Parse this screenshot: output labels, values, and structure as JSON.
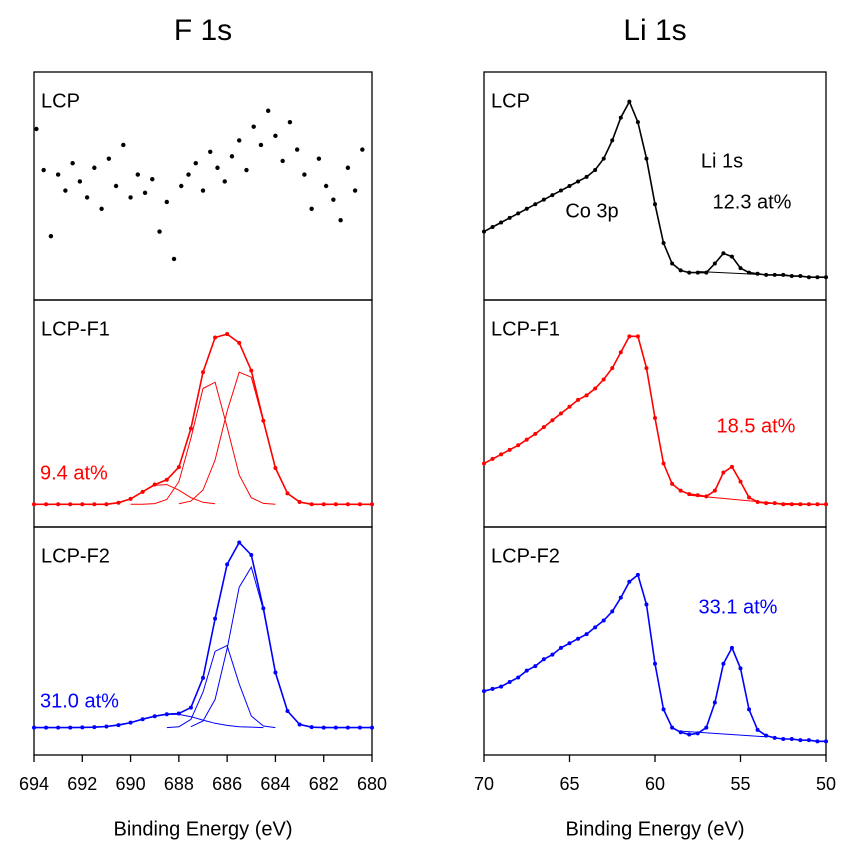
{
  "chart_data": [
    {
      "type": "scatter",
      "title": "F 1s",
      "label": "LCP",
      "xlim": [
        694,
        680
      ],
      "ylim": [
        0,
        100
      ],
      "annotations": [],
      "series": [
        {
          "color": "#000000",
          "style": "dots",
          "x": [
            693.9,
            693.6,
            693.3,
            693.0,
            692.7,
            692.4,
            692.1,
            691.8,
            691.5,
            691.2,
            690.9,
            690.6,
            690.3,
            690.0,
            689.7,
            689.4,
            689.1,
            688.8,
            688.5,
            688.2,
            687.9,
            687.6,
            687.3,
            687.0,
            686.7,
            686.4,
            686.1,
            685.8,
            685.5,
            685.2,
            684.9,
            684.6,
            684.3,
            684.0,
            683.7,
            683.4,
            683.1,
            682.8,
            682.5,
            682.2,
            681.9,
            681.6,
            681.3,
            681.0,
            680.7,
            680.4
          ],
          "values": [
            75,
            57,
            28,
            55,
            48,
            60,
            52,
            45,
            58,
            40,
            62,
            50,
            68,
            45,
            55,
            47,
            53,
            30,
            43,
            18,
            50,
            55,
            60,
            48,
            65,
            58,
            52,
            63,
            70,
            57,
            76,
            68,
            83,
            72,
            61,
            78,
            66,
            55,
            40,
            62,
            50,
            44,
            35,
            58,
            48,
            66
          ]
        }
      ]
    },
    {
      "type": "line",
      "label": "LCP-F1",
      "xlim": [
        694,
        680
      ],
      "ylim": [
        0,
        100
      ],
      "annotations": [
        {
          "text": "9.4 at%",
          "color": "#ff0000"
        }
      ],
      "series": [
        {
          "color": "#ff0000",
          "style": "dots-line",
          "x": [
            694,
            693.5,
            693,
            692.5,
            692,
            691.5,
            691,
            690.5,
            690,
            689.5,
            689,
            688.5,
            688,
            687.5,
            687,
            686.5,
            686,
            685.5,
            685,
            684.5,
            684,
            683.5,
            683,
            682.5,
            682,
            681.5,
            681,
            680.5,
            680
          ],
          "values": [
            10,
            10,
            10,
            10,
            10,
            10,
            10,
            10.7,
            12.4,
            15.5,
            18.7,
            20.8,
            26.4,
            43.4,
            68.2,
            83.5,
            85,
            81.1,
            68.9,
            46.8,
            26,
            14.8,
            11,
            10,
            10,
            10,
            10,
            10,
            10
          ]
        },
        {
          "color": "#ff0000",
          "style": "thin-line",
          "x": [
            688,
            687.5,
            687,
            686.5,
            686,
            685.5,
            685,
            684.5,
            684,
            683.5,
            683,
            682.5
          ],
          "values": [
            10.2,
            11.4,
            16.3,
            29.5,
            51,
            68.2,
            66,
            46.4,
            26,
            14.8,
            11,
            10.1
          ]
        },
        {
          "color": "#ff0000",
          "style": "thin-line",
          "x": [
            690,
            689.5,
            689,
            688.5,
            688,
            687.5,
            687,
            686.5,
            686,
            685.5,
            685,
            684.5,
            684
          ],
          "values": [
            10,
            10,
            10.3,
            12.1,
            20,
            39.1,
            61,
            63.8,
            44,
            22.9,
            12.9,
            10.4,
            10
          ]
        },
        {
          "color": "#ff0000",
          "style": "thin-line",
          "x": [
            691,
            690.5,
            690,
            689.5,
            689,
            688.5,
            688,
            687.5,
            687,
            686.5
          ],
          "values": [
            10.1,
            10.7,
            12.4,
            15.5,
            18.4,
            18.7,
            16.2,
            12.9,
            10.9,
            10.2
          ]
        }
      ]
    },
    {
      "type": "line",
      "label": "LCP-F2",
      "xlim": [
        694,
        680
      ],
      "ylim": [
        0,
        100
      ],
      "xticks": [
        694,
        692,
        690,
        688,
        686,
        684,
        682,
        680
      ],
      "xlabel": "Binding Energy (eV)",
      "annotations": [
        {
          "text": "31.0 at%",
          "color": "#0000ff"
        }
      ],
      "series": [
        {
          "color": "#0000ff",
          "style": "dots-line",
          "x": [
            694,
            693.5,
            693,
            692.5,
            692,
            691.5,
            691,
            690.5,
            690,
            689.5,
            689,
            688.5,
            688,
            687.5,
            687,
            686.5,
            686,
            685.5,
            685,
            684.5,
            684,
            683.5,
            683,
            682.5,
            682,
            681.5,
            681,
            680.5,
            680
          ],
          "values": [
            12,
            12,
            12,
            12,
            12.1,
            12.2,
            12.5,
            13.1,
            14.2,
            15.7,
            17,
            17.9,
            18.2,
            20.8,
            33.8,
            59.8,
            83.6,
            93.2,
            87.7,
            64.3,
            36.2,
            19.3,
            13.4,
            12.2,
            12,
            12,
            12,
            12,
            12
          ]
        },
        {
          "color": "#0000ff",
          "style": "thin-line",
          "x": [
            687.5,
            687,
            686.5,
            686,
            685.5,
            685,
            684.5,
            684,
            683.5,
            683,
            682.5
          ],
          "values": [
            12.4,
            14.9,
            24.4,
            46.6,
            73.6,
            82.4,
            63.6,
            36.2,
            19.3,
            13.4,
            12.2
          ]
        },
        {
          "color": "#0000ff",
          "style": "thin-line",
          "x": [
            688.5,
            688,
            687.5,
            687,
            686.5,
            686,
            685.5,
            685,
            684.5,
            684
          ],
          "values": [
            12,
            12.4,
            15.6,
            27.6,
            45.5,
            48,
            31.2,
            17.1,
            12.7,
            12
          ]
        },
        {
          "color": "#0000ff",
          "style": "thin-line",
          "x": [
            692,
            691,
            690,
            689.5,
            689,
            688.5,
            688,
            687.5,
            687,
            686.5,
            686,
            685.5,
            684.5
          ],
          "values": [
            12.1,
            12.5,
            14.2,
            15.7,
            17,
            17.9,
            17.8,
            16.8,
            15.3,
            13.9,
            13,
            12.4,
            12
          ]
        }
      ]
    },
    {
      "type": "line",
      "title": "Li 1s",
      "label": "LCP",
      "xlim": [
        70,
        50
      ],
      "ylim": [
        0,
        100
      ],
      "annotations": [
        {
          "text": "Co 3p",
          "color": "#000000"
        },
        {
          "text": "Li 1s",
          "color": "#000000"
        },
        {
          "text": "12.3 at%",
          "color": "#000000"
        }
      ],
      "series": [
        {
          "color": "#000000",
          "style": "dots-line",
          "x": [
            70,
            69.5,
            69,
            68.5,
            68,
            67.5,
            67,
            66.5,
            66,
            65.5,
            65,
            64.5,
            64,
            63.5,
            63,
            62.5,
            62,
            61.5,
            61,
            60.5,
            60,
            59.5,
            59,
            58.5,
            58,
            57.5,
            57,
            56.5,
            56,
            55.5,
            55,
            54.5,
            54,
            53.5,
            53,
            52.5,
            52,
            51.5,
            51,
            50.5,
            50
          ],
          "values": [
            30,
            32,
            34,
            36,
            38,
            40,
            42,
            44,
            46,
            48,
            50,
            52,
            54,
            57,
            62,
            70,
            80,
            87,
            78,
            62,
            42,
            25,
            16,
            13,
            12,
            12,
            12,
            16,
            20.5,
            19,
            14,
            12,
            11.5,
            11,
            11,
            11,
            10.5,
            10.5,
            10,
            10,
            10
          ]
        },
        {
          "color": "#000000",
          "style": "thin-line",
          "x": [
            57.5,
            50.5
          ],
          "values": [
            12.5,
            10
          ]
        }
      ]
    },
    {
      "type": "line",
      "label": "LCP-F1",
      "xlim": [
        70,
        50
      ],
      "ylim": [
        0,
        100
      ],
      "annotations": [
        {
          "text": "18.5 at%",
          "color": "#ff0000"
        }
      ],
      "series": [
        {
          "color": "#ff0000",
          "style": "dots-line",
          "x": [
            70,
            69.5,
            69,
            68.5,
            68,
            67.5,
            67,
            66.5,
            66,
            65.5,
            65,
            64.5,
            64,
            63.5,
            63,
            62.5,
            62,
            61.5,
            61,
            60.5,
            60,
            59.5,
            59,
            58.5,
            58,
            57.5,
            57,
            56.5,
            56,
            55.5,
            55,
            54.5,
            54,
            53.5,
            53,
            52.5,
            52,
            51.5,
            51,
            50.5,
            50
          ],
          "values": [
            28,
            30,
            32,
            34,
            36,
            38.5,
            41,
            44,
            47,
            50,
            53,
            56,
            58,
            61,
            65,
            70,
            77,
            84,
            84,
            70,
            48,
            28,
            19,
            16,
            14.5,
            14,
            13.5,
            16,
            24,
            26.5,
            20,
            13,
            11,
            10.5,
            10.5,
            10,
            10,
            10,
            10,
            10,
            10
          ]
        },
        {
          "color": "#ff0000",
          "style": "thin-line",
          "x": [
            58,
            53,
            50
          ],
          "values": [
            14,
            10.5,
            10
          ]
        }
      ]
    },
    {
      "type": "line",
      "label": "LCP-F2",
      "xlim": [
        70,
        50
      ],
      "ylim": [
        0,
        100
      ],
      "xticks": [
        70,
        65,
        60,
        55,
        50
      ],
      "xlabel": "Binding Energy (eV)",
      "annotations": [
        {
          "text": "33.1 at%",
          "color": "#0000ff"
        }
      ],
      "series": [
        {
          "color": "#0000ff",
          "style": "dots-line",
          "x": [
            70,
            69.5,
            69,
            68.5,
            68,
            67.5,
            67,
            66.5,
            66,
            65.5,
            65,
            64.5,
            64,
            63.5,
            63,
            62.5,
            62,
            61.5,
            61,
            60.5,
            60,
            59.5,
            59,
            58.5,
            58,
            57.5,
            57,
            56.5,
            56,
            55.5,
            55,
            54.5,
            54,
            53.5,
            53,
            52.5,
            52,
            51.5,
            51,
            50.5,
            50
          ],
          "values": [
            28,
            29,
            30,
            32,
            34,
            37,
            39,
            42,
            44,
            47,
            49,
            51,
            53,
            56,
            59,
            63,
            69,
            76,
            79,
            66,
            40,
            20,
            12,
            10,
            9,
            9.5,
            12,
            23,
            40,
            47,
            38,
            20,
            11,
            8.5,
            7.5,
            7,
            7,
            6.5,
            6.5,
            6,
            6
          ]
        },
        {
          "color": "#0000ff",
          "style": "thin-line",
          "x": [
            58.5,
            53.5
          ],
          "values": [
            10.5,
            8
          ]
        }
      ]
    }
  ]
}
